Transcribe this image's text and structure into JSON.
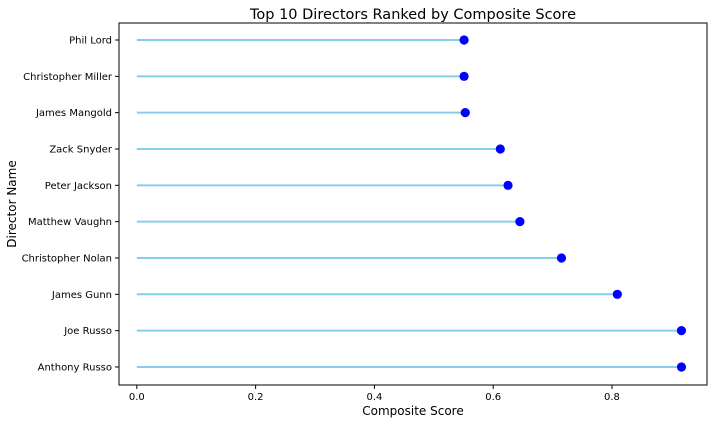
{
  "chart_data": {
    "type": "lollipop",
    "title": "Top 10 Directors Ranked by Composite Score",
    "xlabel": "Composite Score",
    "ylabel": "Director Name",
    "xlim": [
      -0.03,
      0.96
    ],
    "xticks": [
      0.0,
      0.2,
      0.4,
      0.6,
      0.8
    ],
    "xtick_labels": [
      "0.0",
      "0.2",
      "0.4",
      "0.6",
      "0.8"
    ],
    "grid": false,
    "stem_color": "#87ceeb",
    "marker_color": "#0000ff",
    "categories": [
      "Phil Lord",
      "Christopher Miller",
      "James Mangold",
      "Zack Snyder",
      "Peter Jackson",
      "Matthew Vaughn",
      "Christopher Nolan",
      "James Gunn",
      "Joe Russo",
      "Anthony Russo"
    ],
    "values": [
      0.551,
      0.551,
      0.553,
      0.612,
      0.625,
      0.645,
      0.715,
      0.809,
      0.917,
      0.917
    ]
  }
}
